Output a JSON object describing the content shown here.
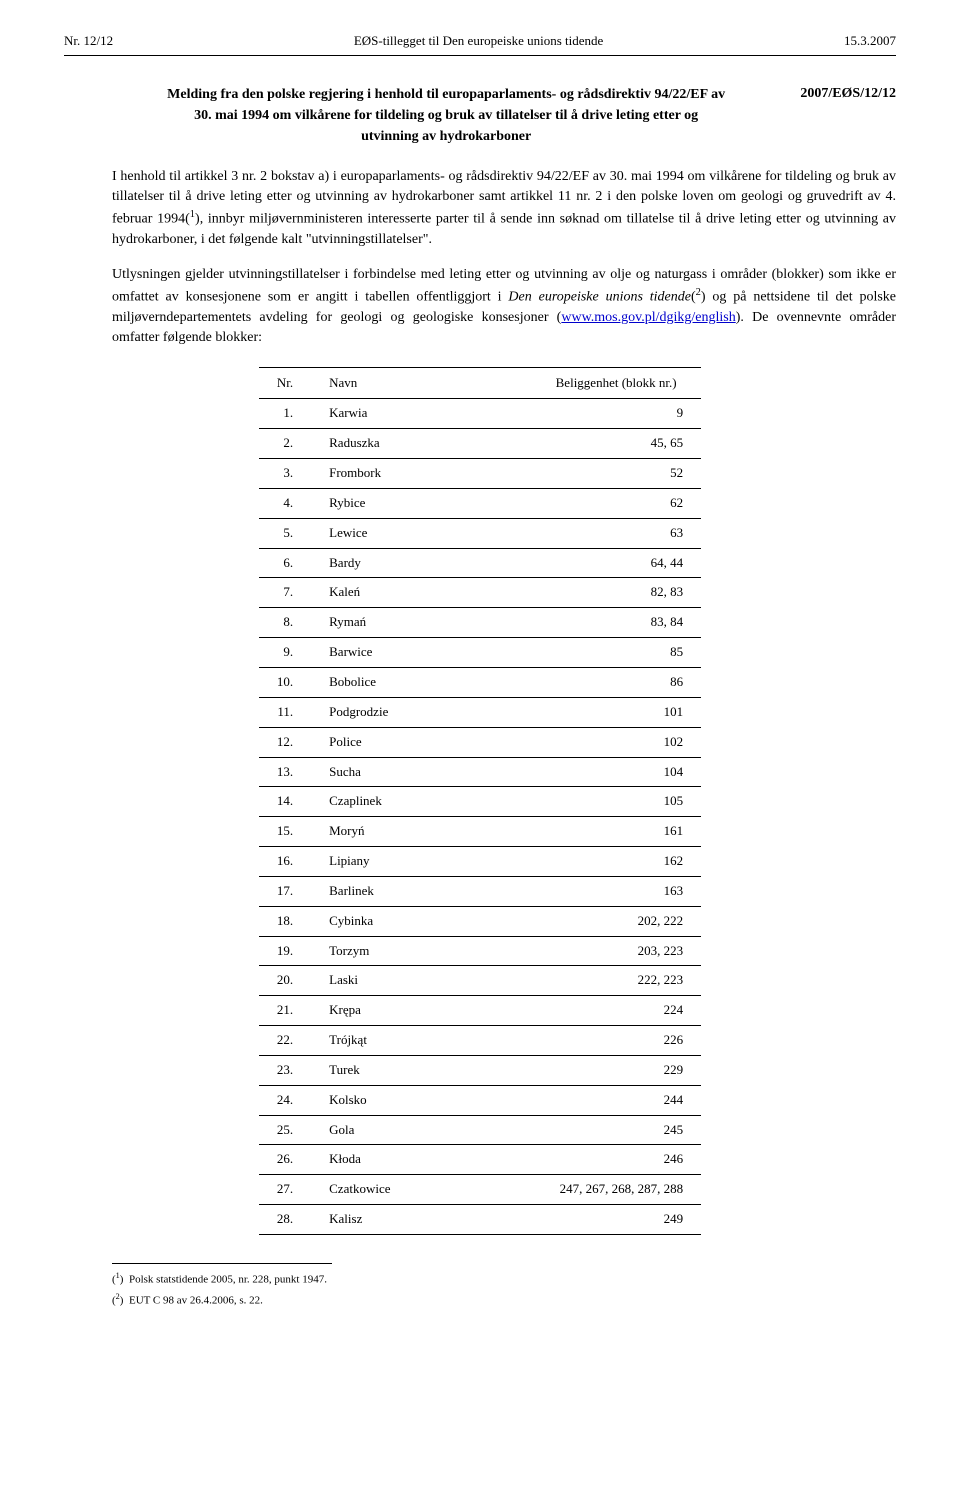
{
  "header": {
    "left": "Nr. 12/12",
    "center": "EØS-tillegget til Den europeiske unions tidende",
    "right": "15.3.2007"
  },
  "title": {
    "main": "Melding fra den polske regjering i henhold til europaparlaments- og rådsdirektiv 94/22/EF av 30. mai 1994 om vilkårene for tildeling og bruk av tillatelser til å drive leting etter og utvinning av hydrokarboner",
    "doc_ref": "2007/EØS/12/12"
  },
  "paragraphs": {
    "p1_a": "I henhold til artikkel 3 nr. 2 bokstav a) i europaparlaments- og rådsdirektiv 94/22/EF av 30. mai 1994 om vilkårene for tildeling og bruk av tillatelser til å drive leting etter og utvinning av hydrokarboner samt artikkel 11 nr. 2 i den polske loven om geologi og gruvedrift av 4. februar 1994(",
    "p1_sup1": "1",
    "p1_b": "), innbyr miljøvernministeren interesserte parter til å sende inn søknad om tillatelse til å drive leting etter og utvinning av hydrokarboner, i det følgende kalt \"utvinningstillatelser\".",
    "p2_a": "Utlysningen gjelder utvinningstillatelser i forbindelse med leting etter og utvinning av olje og naturgass i områder (blokker) som ikke er omfattet av konsesjonene som er angitt i tabellen offentliggjort i ",
    "p2_italic": "Den europeiske unions tidende",
    "p2_b": "(",
    "p2_sup2": "2",
    "p2_c": ") og på nettsidene til det polske miljøverndepartementets avdeling for geologi og geologiske konsesjoner (",
    "p2_link": "www.mos.gov.pl/dgikg/english",
    "p2_d": "). De ovennevnte områder omfatter følgende blokker:"
  },
  "table": {
    "headers": {
      "nr": "Nr.",
      "name": "Navn",
      "loc": "Beliggenhet (blokk nr.)"
    },
    "rows": [
      {
        "nr": "1.",
        "name": "Karwia",
        "loc": "9"
      },
      {
        "nr": "2.",
        "name": "Raduszka",
        "loc": "45, 65"
      },
      {
        "nr": "3.",
        "name": "Frombork",
        "loc": "52"
      },
      {
        "nr": "4.",
        "name": "Rybice",
        "loc": "62"
      },
      {
        "nr": "5.",
        "name": "Lewice",
        "loc": "63"
      },
      {
        "nr": "6.",
        "name": "Bardy",
        "loc": "64, 44"
      },
      {
        "nr": "7.",
        "name": "Kaleń",
        "loc": "82, 83"
      },
      {
        "nr": "8.",
        "name": "Rymań",
        "loc": "83, 84"
      },
      {
        "nr": "9.",
        "name": "Barwice",
        "loc": "85"
      },
      {
        "nr": "10.",
        "name": "Bobolice",
        "loc": "86"
      },
      {
        "nr": "11.",
        "name": "Podgrodzie",
        "loc": "101"
      },
      {
        "nr": "12.",
        "name": "Police",
        "loc": "102"
      },
      {
        "nr": "13.",
        "name": "Sucha",
        "loc": "104"
      },
      {
        "nr": "14.",
        "name": "Czaplinek",
        "loc": "105"
      },
      {
        "nr": "15.",
        "name": "Moryń",
        "loc": "161"
      },
      {
        "nr": "16.",
        "name": "Lipiany",
        "loc": "162"
      },
      {
        "nr": "17.",
        "name": "Barlinek",
        "loc": "163"
      },
      {
        "nr": "18.",
        "name": "Cybinka",
        "loc": "202, 222"
      },
      {
        "nr": "19.",
        "name": "Torzym",
        "loc": "203, 223"
      },
      {
        "nr": "20.",
        "name": "Laski",
        "loc": "222, 223"
      },
      {
        "nr": "21.",
        "name": "Krępa",
        "loc": "224"
      },
      {
        "nr": "22.",
        "name": "Trójkąt",
        "loc": "226"
      },
      {
        "nr": "23.",
        "name": "Turek",
        "loc": "229"
      },
      {
        "nr": "24.",
        "name": "Kolsko",
        "loc": "244"
      },
      {
        "nr": "25.",
        "name": "Gola",
        "loc": "245"
      },
      {
        "nr": "26.",
        "name": "Kłoda",
        "loc": "246"
      },
      {
        "nr": "27.",
        "name": "Czatkowice",
        "loc": "247, 267, 268, 287, 288"
      },
      {
        "nr": "28.",
        "name": "Kalisz",
        "loc": "249"
      }
    ]
  },
  "footnotes": {
    "f1_label": "1",
    "f1_text": "Polsk statstidende 2005, nr. 228, punkt 1947.",
    "f2_label": "2",
    "f2_text": "EUT C 98 av 26.4.2006, s. 22."
  }
}
